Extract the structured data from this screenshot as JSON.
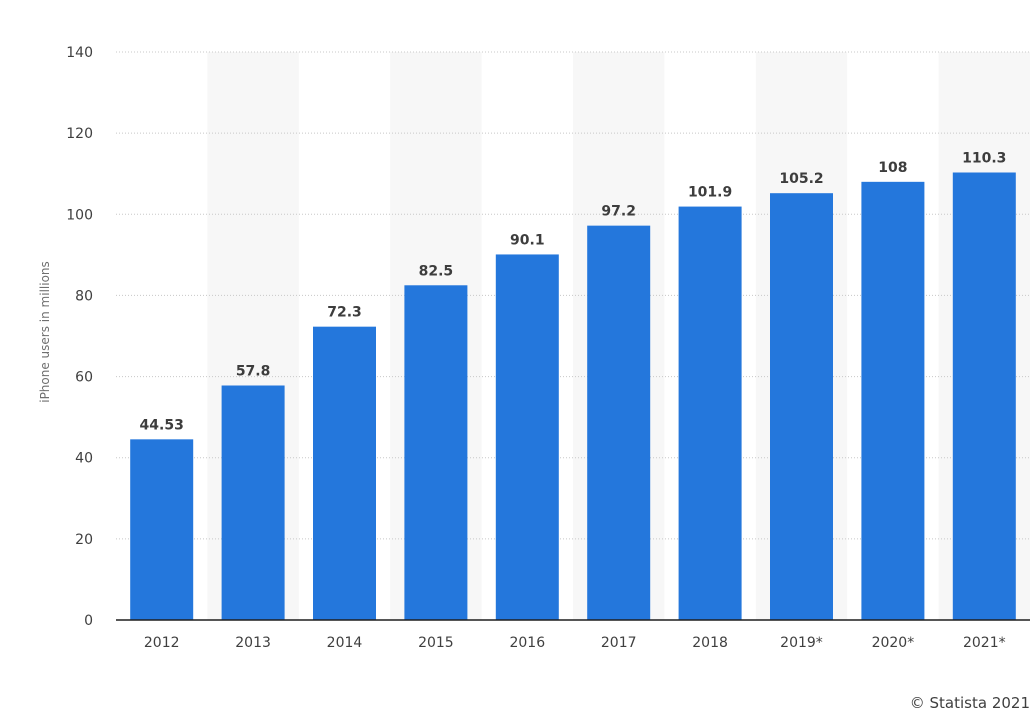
{
  "chart_data": {
    "type": "bar",
    "categories": [
      "2012",
      "2013",
      "2014",
      "2015",
      "2016",
      "2017",
      "2018",
      "2019*",
      "2020*",
      "2021*"
    ],
    "values": [
      44.53,
      57.8,
      72.3,
      82.5,
      90.1,
      97.2,
      101.9,
      105.2,
      108,
      110.3
    ],
    "value_labels": [
      "44.53",
      "57.8",
      "72.3",
      "82.5",
      "90.1",
      "97.2",
      "101.9",
      "105.2",
      "108",
      "110.3"
    ],
    "title": "",
    "xlabel": "",
    "ylabel": "iPhone users in millions",
    "ylim": [
      0,
      140
    ],
    "yticks": [
      0,
      20,
      40,
      60,
      80,
      100,
      120,
      140
    ],
    "grid": true,
    "legend": "none",
    "bar_color": "#2477dc",
    "alternate_band_color": "#f7f7f7"
  },
  "credit": "© Statista 2021"
}
